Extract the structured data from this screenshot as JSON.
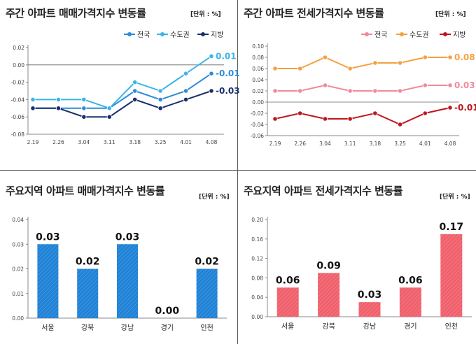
{
  "chart_data": [
    {
      "type": "line",
      "title": "주간 아파트 매매가격지수 변동률",
      "unit": "[단위 : %]",
      "categories": [
        "2.19",
        "2.26",
        "3.04",
        "3.11",
        "3.18",
        "3.25",
        "4.01",
        "4.08"
      ],
      "ylim": [
        -0.08,
        0.02
      ],
      "yticks": [
        "0.02",
        "0.00",
        "-0.02",
        "-0.04",
        "-0.06",
        "-0.08"
      ],
      "grid": false,
      "legend_position": "top-right",
      "series": [
        {
          "name": "전국",
          "color": "#2e8bd8",
          "values": [
            -0.05,
            -0.05,
            -0.05,
            -0.05,
            -0.03,
            -0.04,
            -0.03,
            -0.01
          ],
          "end_label": "-0.01"
        },
        {
          "name": "수도권",
          "color": "#3cb4e8",
          "values": [
            -0.04,
            -0.04,
            -0.04,
            -0.05,
            -0.02,
            -0.03,
            -0.01,
            0.01
          ],
          "end_label": "0.01"
        },
        {
          "name": "지방",
          "color": "#1b2f6b",
          "values": [
            -0.05,
            -0.05,
            -0.06,
            -0.06,
            -0.04,
            -0.05,
            -0.04,
            -0.03
          ],
          "end_label": "-0.03"
        }
      ]
    },
    {
      "type": "line",
      "title": "주간 아파트 전세가격지수 변동률",
      "unit": "[단위 : %]",
      "categories": [
        "2.19",
        "2.26",
        "3.04",
        "3.11",
        "3.18",
        "3.25",
        "4.01",
        "4.08"
      ],
      "ylim": [
        -0.06,
        0.1
      ],
      "yticks": [
        "0.10",
        "0.08",
        "0.06",
        "0.04",
        "0.02",
        "0.00",
        "-0.02",
        "-0.04",
        "-0.06"
      ],
      "grid": false,
      "legend_position": "top-right",
      "series": [
        {
          "name": "전국",
          "color": "#f08a9a",
          "values": [
            0.02,
            0.02,
            0.03,
            0.02,
            0.02,
            0.02,
            0.03,
            0.03
          ],
          "end_label": "0.03"
        },
        {
          "name": "수도권",
          "color": "#f5a040",
          "values": [
            0.06,
            0.06,
            0.08,
            0.06,
            0.07,
            0.07,
            0.08,
            0.08
          ],
          "end_label": "0.08"
        },
        {
          "name": "지방",
          "color": "#c0151d",
          "values": [
            -0.03,
            -0.02,
            -0.03,
            -0.03,
            -0.02,
            -0.04,
            -0.02,
            -0.01
          ],
          "end_label": "-0.01"
        }
      ]
    },
    {
      "type": "bar",
      "title": "주요지역 아파트 매매가격지수 변동률",
      "unit": "[단위 : %]",
      "categories": [
        "서울",
        "강북",
        "강남",
        "경기",
        "인천"
      ],
      "values": [
        0.03,
        0.02,
        0.03,
        0.0,
        0.02
      ],
      "labels": [
        "0.03",
        "0.02",
        "0.03",
        "0.00",
        "0.02"
      ],
      "ylim": [
        0,
        0.04
      ],
      "yticks": [
        "0.04",
        "0.03",
        "0.02",
        "0.01",
        "0.00"
      ],
      "color": "#1f82d6",
      "grid": false
    },
    {
      "type": "bar",
      "title": "주요지역 아파트 전세가격지수 변동률",
      "unit": "[단위 : %]",
      "categories": [
        "서울",
        "강북",
        "강남",
        "경기",
        "인천"
      ],
      "values": [
        0.06,
        0.09,
        0.03,
        0.06,
        0.17
      ],
      "labels": [
        "0.06",
        "0.09",
        "0.03",
        "0.06",
        "0.17"
      ],
      "ylim": [
        0,
        0.2
      ],
      "yticks": [
        "0.20",
        "0.16",
        "0.12",
        "0.08",
        "0.04",
        "0.00"
      ],
      "color": "#f0606c",
      "grid": false
    }
  ]
}
